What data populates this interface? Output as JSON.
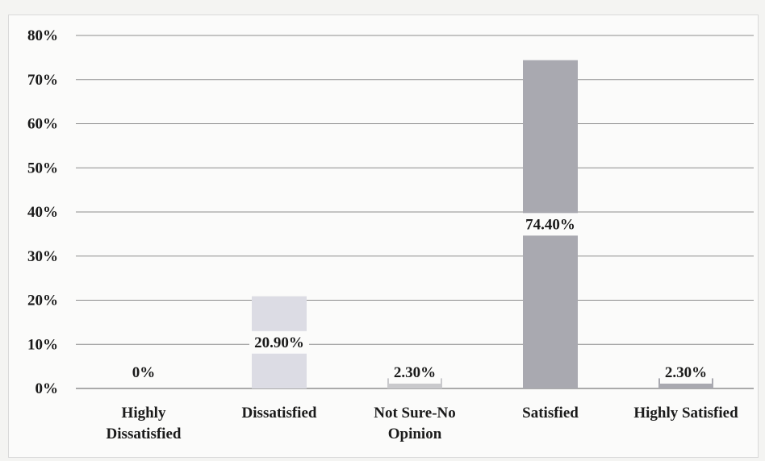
{
  "chart_data": {
    "type": "bar",
    "categories": [
      [
        "Highly",
        "Dissatisfied"
      ],
      [
        "Dissatisfied"
      ],
      [
        "Not Sure-No",
        "Opinion"
      ],
      [
        "Satisfied"
      ],
      [
        "Highly Satisfied"
      ]
    ],
    "values": [
      0,
      20.9,
      2.3,
      74.4,
      2.3
    ],
    "data_labels": [
      "0%",
      "20.90%",
      "2.30%",
      "74.40%",
      "2.30%"
    ],
    "colors": [
      "#c9c9cc",
      "#dcdce4",
      "#c9c9cc",
      "#a9a9b0",
      "#a9a9b0"
    ],
    "y_ticks": [
      "0%",
      "10%",
      "20%",
      "30%",
      "40%",
      "50%",
      "60%",
      "70%",
      "80%"
    ],
    "ylim": [
      0,
      80
    ],
    "grid": true,
    "legend": "none"
  }
}
